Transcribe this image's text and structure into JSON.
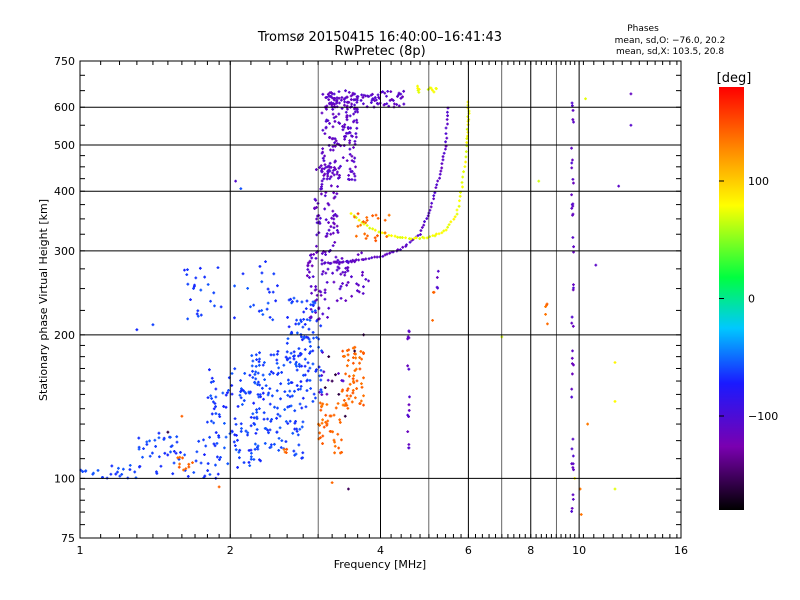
{
  "chart_data": {
    "type": "scatter",
    "title": "Tromsø 20150415 16:40:00–16:41:43",
    "subtitle": "RwPretec (8p)",
    "xlabel": "Frequency [MHz]",
    "ylabel": "Stationary phase Virtual Height [km]",
    "x_scale": "log",
    "y_scale": "log",
    "xlim": [
      1,
      16
    ],
    "ylim": [
      75,
      750
    ],
    "x_ticks": [
      1,
      2,
      4,
      6,
      8,
      10,
      16
    ],
    "x_tick_labels": [
      "1",
      "2",
      "4",
      "6",
      "8",
      "10",
      "16"
    ],
    "x_minor_ticks": [
      3,
      5,
      7,
      9
    ],
    "y_ticks": [
      75,
      100,
      200,
      300,
      400,
      500,
      600,
      750
    ],
    "y_tick_labels": [
      "75",
      "100",
      "200",
      "300",
      "400",
      "500",
      "600",
      "750"
    ],
    "grid": true,
    "phase_box": {
      "title": "Phases",
      "line1": "mean, sd,O: −76.0, 20.2",
      "line2": "mean, sd,X: 103.5, 20.8"
    },
    "colorbar": {
      "label": "[deg]",
      "range": [
        -180,
        180
      ],
      "ticks": [
        100,
        0,
        -100
      ],
      "tick_labels": [
        "100",
        "0",
        "−100"
      ]
    },
    "series": [
      {
        "color_phase": -110,
        "traces": [
          {
            "kind": "curve",
            "points": [
              [
                3.05,
                282
              ],
              [
                3.3,
                284
              ],
              [
                3.6,
                287
              ],
              [
                4.0,
                292
              ],
              [
                4.4,
                302
              ],
              [
                4.8,
                325
              ],
              [
                5.05,
                370
              ],
              [
                5.25,
                430
              ],
              [
                5.4,
                500
              ],
              [
                5.45,
                600
              ]
            ],
            "jitter": 0.008,
            "n": 80
          },
          {
            "kind": "cloud",
            "x": [
              3.05,
              3.6
            ],
            "y": [
              420,
              650
            ],
            "n": 160
          },
          {
            "kind": "cloud",
            "x": [
              3.1,
              4.5
            ],
            "y": [
              600,
              650
            ],
            "n": 90
          },
          {
            "kind": "cloud",
            "x": [
              2.95,
              3.3
            ],
            "y": [
              290,
              460
            ],
            "n": 80
          },
          {
            "kind": "cloud",
            "x": [
              2.85,
              3.15
            ],
            "y": [
              215,
              300
            ],
            "n": 50
          },
          {
            "kind": "cloud",
            "x": [
              3.2,
              3.5
            ],
            "y": [
              235,
              290
            ],
            "n": 30
          },
          {
            "kind": "cloud",
            "x": [
              3.5,
              3.8
            ],
            "y": [
              240,
              300
            ],
            "n": 15
          },
          {
            "kind": "cloud",
            "x": [
              3.0,
              3.4
            ],
            "y": [
              145,
              200
            ],
            "n": 10
          },
          {
            "kind": "vline",
            "x": 4.55,
            "y": [
              115,
              210
            ],
            "n": 16
          },
          {
            "kind": "vline",
            "x": 9.7,
            "y": [
              85,
              650
            ],
            "n": 45
          },
          {
            "kind": "vline",
            "x": 5.2,
            "y": [
              250,
              290
            ],
            "n": 4
          },
          {
            "kind": "pts",
            "points": [
              [
                12.7,
                640
              ],
              [
                12.7,
                550
              ],
              [
                12.0,
                410
              ],
              [
                10.8,
                280
              ],
              [
                2.05,
                420
              ]
            ]
          }
        ]
      },
      {
        "color_phase": -62,
        "traces": [
          {
            "kind": "cloud",
            "x": [
              1.0,
              1.35
            ],
            "y": [
              100,
              107
            ],
            "n": 25
          },
          {
            "kind": "cloud",
            "x": [
              1.3,
              1.9
            ],
            "y": [
              100,
              125
            ],
            "n": 55
          },
          {
            "kind": "cloud",
            "x": [
              1.8,
              2.3
            ],
            "y": [
              105,
              170
            ],
            "n": 110
          },
          {
            "kind": "cloud",
            "x": [
              2.2,
              2.8
            ],
            "y": [
              110,
              185
            ],
            "n": 130
          },
          {
            "kind": "cloud",
            "x": [
              2.6,
              3.05
            ],
            "y": [
              140,
              240
            ],
            "n": 110
          },
          {
            "kind": "cloud",
            "x": [
              1.6,
              2.5
            ],
            "y": [
              215,
              285
            ],
            "n": 45
          },
          {
            "kind": "pts",
            "points": [
              [
                1.4,
                210
              ],
              [
                1.3,
                205
              ],
              [
                1.75,
                220
              ],
              [
                2.1,
                405
              ]
            ]
          }
        ]
      },
      {
        "color_phase": 75,
        "traces": [
          {
            "kind": "curve",
            "points": [
              [
                3.5,
                360
              ],
              [
                3.8,
                335
              ],
              [
                4.2,
                322
              ],
              [
                4.6,
                318
              ],
              [
                5.0,
                320
              ],
              [
                5.4,
                330
              ],
              [
                5.7,
                360
              ],
              [
                5.85,
                420
              ],
              [
                5.95,
                500
              ],
              [
                6.0,
                560
              ],
              [
                6.0,
                615
              ]
            ],
            "jitter": 0.007,
            "n": 70
          },
          {
            "kind": "cloud",
            "x": [
              4.7,
              5.2
            ],
            "y": [
              640,
              665
            ],
            "n": 12
          },
          {
            "kind": "pts",
            "points": [
              [
                7.0,
                198
              ],
              [
                10.3,
                625
              ],
              [
                11.8,
                175
              ],
              [
                11.8,
                145
              ],
              [
                11.8,
                95
              ],
              [
                8.3,
                420
              ],
              [
                9.8,
                100
              ]
            ]
          }
        ]
      },
      {
        "color_phase": 140,
        "traces": [
          {
            "kind": "cloud",
            "x": [
              3.35,
              3.7
            ],
            "y": [
              140,
              190
            ],
            "n": 60
          },
          {
            "kind": "cloud",
            "x": [
              3.0,
              3.35
            ],
            "y": [
              112,
              145
            ],
            "n": 40
          },
          {
            "kind": "cloud",
            "x": [
              3.5,
              4.2
            ],
            "y": [
              315,
              360
            ],
            "n": 22
          },
          {
            "kind": "cloud",
            "x": [
              1.55,
              1.7
            ],
            "y": [
              104,
              112
            ],
            "n": 10
          },
          {
            "kind": "cloud",
            "x": [
              2.55,
              2.65
            ],
            "y": [
              113,
              118
            ],
            "n": 4
          },
          {
            "kind": "vline",
            "x": 8.6,
            "y": [
              205,
              255
            ],
            "n": 5
          },
          {
            "kind": "vline",
            "x": 5.1,
            "y": [
              205,
              250
            ],
            "n": 3
          },
          {
            "kind": "pts",
            "points": [
              [
                3.2,
                98
              ],
              [
                1.9,
                96
              ],
              [
                1.6,
                135
              ],
              [
                10.05,
                95
              ],
              [
                10.1,
                84
              ],
              [
                10.4,
                130
              ]
            ]
          }
        ]
      },
      {
        "color_phase": -155,
        "traces": [
          {
            "kind": "pts",
            "points": [
              [
                3.1,
                155
              ],
              [
                3.2,
                160
              ],
              [
                3.3,
                150
              ],
              [
                3.55,
                185
              ],
              [
                3.7,
                200
              ],
              [
                3.45,
                95
              ],
              [
                1.5,
                125
              ],
              [
                3.25,
                165
              ],
              [
                3.15,
                180
              ],
              [
                3.4,
                135
              ]
            ]
          }
        ]
      }
    ]
  }
}
